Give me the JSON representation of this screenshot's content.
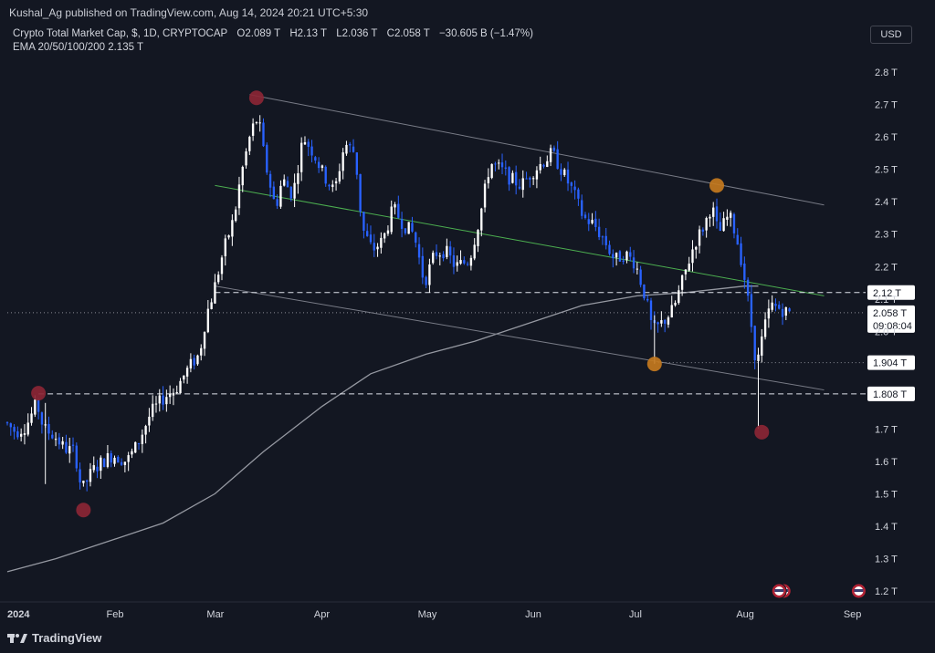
{
  "banner": {
    "text": "Kushal_Ag published on TradingView.com, Aug 14, 2024 20:21 UTC+5:30"
  },
  "legend": {
    "symbol": "Crypto Total Market Cap, $, 1D, CRYPTOCAP",
    "open": "O2.089 T",
    "high": "H2.13 T",
    "low": "L2.036 T",
    "close": "C2.058 T",
    "change": "−30.605 B (−1.47%)",
    "ema": "EMA 20/50/100/200  2.135 T"
  },
  "toolbar": {
    "currency": "USD"
  },
  "footer": {
    "logo_text": "TradingView"
  },
  "colors": {
    "background": "#131722",
    "bull": "#ffffff",
    "bear": "#2962ff",
    "ema": "#9598a1",
    "channel": "#787b86",
    "midline": "#4caf50",
    "marker_red": "#8b2635",
    "marker_orange": "#c47a1e"
  },
  "chart_data": {
    "type": "candlestick",
    "y_axis": {
      "min": 1.15,
      "max": 2.85,
      "unit": "T",
      "ticks": [
        "2.8 T",
        "2.7 T",
        "2.6 T",
        "2.5 T",
        "2.4 T",
        "2.3 T",
        "2.2 T",
        "2.1 T",
        "2.0 T",
        "1.7 T",
        "1.6 T",
        "1.5 T",
        "1.4 T",
        "1.3 T",
        "1.2 T"
      ],
      "tick_values": [
        2.8,
        2.7,
        2.6,
        2.5,
        2.4,
        2.3,
        2.2,
        2.1,
        2.0,
        1.7,
        1.6,
        1.5,
        1.4,
        1.3,
        1.2
      ]
    },
    "x_axis": {
      "start": "2024-01-01",
      "end": "2024-09-05",
      "labels": [
        {
          "text": "2024",
          "date": "2024-01-01",
          "bold": true
        },
        {
          "text": "Feb",
          "date": "2024-02-01"
        },
        {
          "text": "Mar",
          "date": "2024-03-01"
        },
        {
          "text": "Apr",
          "date": "2024-04-01"
        },
        {
          "text": "May",
          "date": "2024-05-01"
        },
        {
          "text": "Jun",
          "date": "2024-06-01"
        },
        {
          "text": "Jul",
          "date": "2024-07-01"
        },
        {
          "text": "Aug",
          "date": "2024-08-01"
        },
        {
          "text": "Sep",
          "date": "2024-09-01"
        }
      ]
    },
    "price_path": [
      [
        "2024-01-01",
        1.72
      ],
      [
        "2024-01-04",
        1.69
      ],
      [
        "2024-01-07",
        1.71
      ],
      [
        "2024-01-10",
        1.78
      ],
      [
        "2024-01-12",
        1.7
      ],
      [
        "2024-01-15",
        1.68
      ],
      [
        "2024-01-18",
        1.64
      ],
      [
        "2024-01-21",
        1.63
      ],
      [
        "2024-01-23",
        1.51
      ],
      [
        "2024-01-26",
        1.57
      ],
      [
        "2024-01-29",
        1.6
      ],
      [
        "2024-02-01",
        1.62
      ],
      [
        "2024-02-05",
        1.6
      ],
      [
        "2024-02-08",
        1.65
      ],
      [
        "2024-02-12",
        1.75
      ],
      [
        "2024-02-16",
        1.8
      ],
      [
        "2024-02-19",
        1.82
      ],
      [
        "2024-02-23",
        1.89
      ],
      [
        "2024-02-26",
        1.93
      ],
      [
        "2024-02-28",
        2.05
      ],
      [
        "2024-03-01",
        2.12
      ],
      [
        "2024-03-04",
        2.25
      ],
      [
        "2024-03-07",
        2.35
      ],
      [
        "2024-03-09",
        2.48
      ],
      [
        "2024-03-12",
        2.62
      ],
      [
        "2024-03-14",
        2.66
      ],
      [
        "2024-03-16",
        2.52
      ],
      [
        "2024-03-19",
        2.38
      ],
      [
        "2024-03-21",
        2.47
      ],
      [
        "2024-03-24",
        2.42
      ],
      [
        "2024-03-27",
        2.6
      ],
      [
        "2024-03-30",
        2.55
      ],
      [
        "2024-04-02",
        2.48
      ],
      [
        "2024-04-05",
        2.43
      ],
      [
        "2024-04-08",
        2.58
      ],
      [
        "2024-04-11",
        2.55
      ],
      [
        "2024-04-13",
        2.32
      ],
      [
        "2024-04-16",
        2.25
      ],
      [
        "2024-04-19",
        2.28
      ],
      [
        "2024-04-22",
        2.38
      ],
      [
        "2024-04-25",
        2.33
      ],
      [
        "2024-04-28",
        2.3
      ],
      [
        "2024-05-01",
        2.15
      ],
      [
        "2024-05-04",
        2.24
      ],
      [
        "2024-05-07",
        2.25
      ],
      [
        "2024-05-10",
        2.2
      ],
      [
        "2024-05-14",
        2.22
      ],
      [
        "2024-05-17",
        2.35
      ],
      [
        "2024-05-20",
        2.52
      ],
      [
        "2024-05-23",
        2.5
      ],
      [
        "2024-05-26",
        2.47
      ],
      [
        "2024-05-29",
        2.45
      ],
      [
        "2024-06-01",
        2.49
      ],
      [
        "2024-06-04",
        2.52
      ],
      [
        "2024-06-07",
        2.55
      ],
      [
        "2024-06-10",
        2.49
      ],
      [
        "2024-06-13",
        2.43
      ],
      [
        "2024-06-16",
        2.35
      ],
      [
        "2024-06-19",
        2.33
      ],
      [
        "2024-06-22",
        2.28
      ],
      [
        "2024-06-25",
        2.22
      ],
      [
        "2024-06-28",
        2.24
      ],
      [
        "2024-07-01",
        2.21
      ],
      [
        "2024-07-04",
        2.1
      ],
      [
        "2024-07-06",
        2.0
      ],
      [
        "2024-07-09",
        2.03
      ],
      [
        "2024-07-12",
        2.07
      ],
      [
        "2024-07-15",
        2.17
      ],
      [
        "2024-07-18",
        2.27
      ],
      [
        "2024-07-21",
        2.33
      ],
      [
        "2024-07-23",
        2.39
      ],
      [
        "2024-07-25",
        2.3
      ],
      [
        "2024-07-28",
        2.36
      ],
      [
        "2024-07-30",
        2.3
      ],
      [
        "2024-08-01",
        2.2
      ],
      [
        "2024-08-03",
        2.06
      ],
      [
        "2024-08-05",
        1.89
      ],
      [
        "2024-08-07",
        2.0
      ],
      [
        "2024-08-09",
        2.08
      ],
      [
        "2024-08-12",
        2.07
      ],
      [
        "2024-08-14",
        2.058
      ]
    ],
    "ema_200": [
      [
        "2024-01-01",
        1.26
      ],
      [
        "2024-01-15",
        1.3
      ],
      [
        "2024-02-01",
        1.36
      ],
      [
        "2024-02-15",
        1.41
      ],
      [
        "2024-03-01",
        1.5
      ],
      [
        "2024-03-15",
        1.63
      ],
      [
        "2024-04-01",
        1.77
      ],
      [
        "2024-04-15",
        1.87
      ],
      [
        "2024-05-01",
        1.93
      ],
      [
        "2024-05-15",
        1.97
      ],
      [
        "2024-06-01",
        2.03
      ],
      [
        "2024-06-15",
        2.08
      ],
      [
        "2024-07-01",
        2.11
      ],
      [
        "2024-07-15",
        2.12
      ],
      [
        "2024-08-01",
        2.14
      ],
      [
        "2024-08-05",
        2.14
      ]
    ],
    "horizontal_levels": [
      {
        "value": 2.12,
        "label": "2.12 T",
        "style": "dashed",
        "start": "2024-03-01"
      },
      {
        "value": 2.058,
        "label": "2.058 T",
        "sublabel": "09:08:04",
        "style": "dotted",
        "start": "2024-01-01"
      },
      {
        "value": 1.904,
        "label": "1.904 T",
        "style": "dotted",
        "start": "2024-07-06"
      },
      {
        "value": 1.808,
        "label": "1.808 T",
        "style": "dashed",
        "start": "2024-01-10"
      }
    ],
    "trendlines": [
      {
        "role": "upper_channel",
        "from": [
          "2024-03-11",
          2.73
        ],
        "to": [
          "2024-08-24",
          2.39
        ]
      },
      {
        "role": "lower_channel",
        "from": [
          "2024-03-01",
          2.14
        ],
        "to": [
          "2024-08-24",
          1.82
        ]
      },
      {
        "role": "mid_channel",
        "from": [
          "2024-03-01",
          2.45
        ],
        "to": [
          "2024-08-24",
          2.11
        ]
      }
    ],
    "markers": [
      {
        "date": "2024-01-10",
        "value": 1.81,
        "color": "red"
      },
      {
        "date": "2024-01-23",
        "value": 1.45,
        "color": "red"
      },
      {
        "date": "2024-03-13",
        "value": 2.72,
        "color": "red"
      },
      {
        "date": "2024-07-24",
        "value": 2.45,
        "color": "orange"
      },
      {
        "date": "2024-07-06",
        "value": 1.9,
        "color": "orange"
      },
      {
        "date": "2024-08-06",
        "value": 1.69,
        "color": "red"
      }
    ],
    "event_icons": [
      {
        "date": "2024-08-11",
        "count": 2
      },
      {
        "date": "2024-09-03",
        "count": 1
      }
    ]
  }
}
